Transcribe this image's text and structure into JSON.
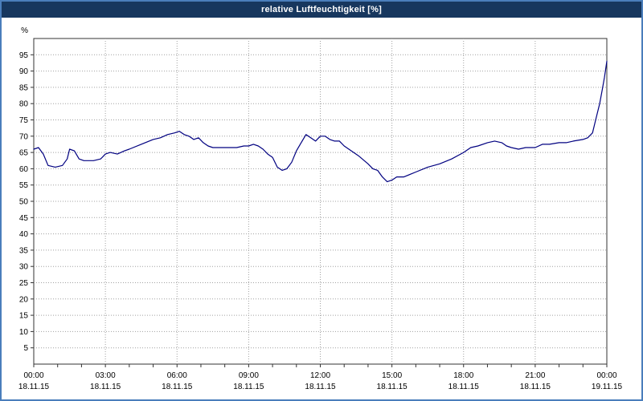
{
  "window": {
    "title": "relative Luftfeuchtigkeit [%]"
  },
  "chart_data": {
    "type": "line",
    "title": "relative Luftfeuchtigkeit [%]",
    "xlabel": "",
    "ylabel": "%",
    "ylim": [
      0,
      100
    ],
    "grid": "dotted",
    "legend": "none",
    "line_color": "#000080",
    "grid_color": "#a0a0a0",
    "axis_color": "#333333",
    "titlebar_color": "#17375e",
    "frame_color": "#4a7ebb",
    "y_ticks": [
      5,
      10,
      15,
      20,
      25,
      30,
      35,
      40,
      45,
      50,
      55,
      60,
      65,
      70,
      75,
      80,
      85,
      90,
      95
    ],
    "x_ticks": [
      {
        "hour": 0,
        "time": "00:00",
        "date": "18.11.15"
      },
      {
        "hour": 3,
        "time": "03:00",
        "date": "18.11.15"
      },
      {
        "hour": 6,
        "time": "06:00",
        "date": "18.11.15"
      },
      {
        "hour": 9,
        "time": "09:00",
        "date": "18.11.15"
      },
      {
        "hour": 12,
        "time": "12:00",
        "date": "18.11.15"
      },
      {
        "hour": 15,
        "time": "15:00",
        "date": "18.11.15"
      },
      {
        "hour": 18,
        "time": "18:00",
        "date": "18.11.15"
      },
      {
        "hour": 21,
        "time": "21:00",
        "date": "18.11.15"
      },
      {
        "hour": 24,
        "time": "00:00",
        "date": "19.11.15"
      }
    ],
    "series": [
      {
        "name": "relative Luftfeuchtigkeit",
        "x": [
          0,
          0.2,
          0.4,
          0.6,
          0.9,
          1.2,
          1.4,
          1.5,
          1.7,
          1.9,
          2.1,
          2.5,
          2.8,
          3,
          3.2,
          3.5,
          3.8,
          4,
          4.5,
          5,
          5.3,
          5.6,
          5.9,
          6.1,
          6.3,
          6.5,
          6.7,
          6.9,
          7.1,
          7.3,
          7.5,
          8,
          8.5,
          8.8,
          9,
          9.2,
          9.4,
          9.6,
          9.8,
          10,
          10.2,
          10.4,
          10.6,
          10.8,
          11,
          11.2,
          11.4,
          11.6,
          11.8,
          12,
          12.2,
          12.4,
          12.6,
          12.8,
          13,
          13.3,
          13.6,
          14,
          14.2,
          14.4,
          14.6,
          14.8,
          15,
          15.2,
          15.5,
          16,
          16.5,
          17,
          17.5,
          18,
          18.3,
          18.6,
          19,
          19.3,
          19.6,
          19.8,
          20,
          20.3,
          20.6,
          21,
          21.3,
          21.6,
          22,
          22.3,
          22.6,
          23,
          23.2,
          23.4,
          23.5,
          23.6,
          23.7,
          23.8,
          23.9,
          24
        ],
        "values": [
          66,
          66.5,
          64.5,
          61,
          60.5,
          61,
          63,
          66,
          65.5,
          63,
          62.5,
          62.5,
          63,
          64.5,
          65,
          64.5,
          65.5,
          66,
          67.5,
          69,
          69.5,
          70.5,
          71,
          71.5,
          70.5,
          70,
          69,
          69.5,
          68,
          67,
          66.5,
          66.5,
          66.5,
          67,
          67,
          67.5,
          67,
          66,
          64.5,
          63.5,
          60.5,
          59.5,
          60,
          62,
          65.5,
          68,
          70.5,
          69.5,
          68.5,
          70,
          70,
          69,
          68.5,
          68.5,
          67,
          65.5,
          64,
          61.5,
          60,
          59.5,
          57.5,
          56,
          56.5,
          57.5,
          57.5,
          59,
          60.5,
          61.5,
          63,
          65,
          66.5,
          67,
          68,
          68.5,
          68,
          67,
          66.5,
          66,
          66.5,
          66.5,
          67.5,
          67.5,
          68,
          68,
          68.5,
          69,
          69.5,
          71,
          74,
          77,
          80,
          84,
          88,
          93
        ]
      }
    ]
  }
}
